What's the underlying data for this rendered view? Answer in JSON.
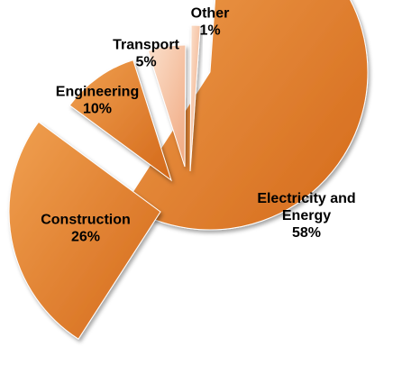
{
  "chart_data": {
    "type": "pie",
    "exploded": true,
    "slices": [
      {
        "name": "Electricity and Energy",
        "label_lines": [
          "Electricity and",
          "Energy"
        ],
        "value": 58,
        "value_label": "58%",
        "color": "#E07A22"
      },
      {
        "name": "Construction",
        "label_lines": [
          "Construction"
        ],
        "value": 26,
        "value_label": "26%",
        "color": "#E68A2E"
      },
      {
        "name": "Engineering",
        "label_lines": [
          "Engineering"
        ],
        "value": 10,
        "value_label": "10%",
        "color": "#EC9A3C"
      },
      {
        "name": "Transport",
        "label_lines": [
          "Transport"
        ],
        "value": 5,
        "value_label": "5%",
        "color": "#F6C8A8"
      },
      {
        "name": "Other",
        "label_lines": [
          "Other"
        ],
        "value": 1,
        "value_label": "1%",
        "color": "#F4B8A2"
      }
    ]
  }
}
